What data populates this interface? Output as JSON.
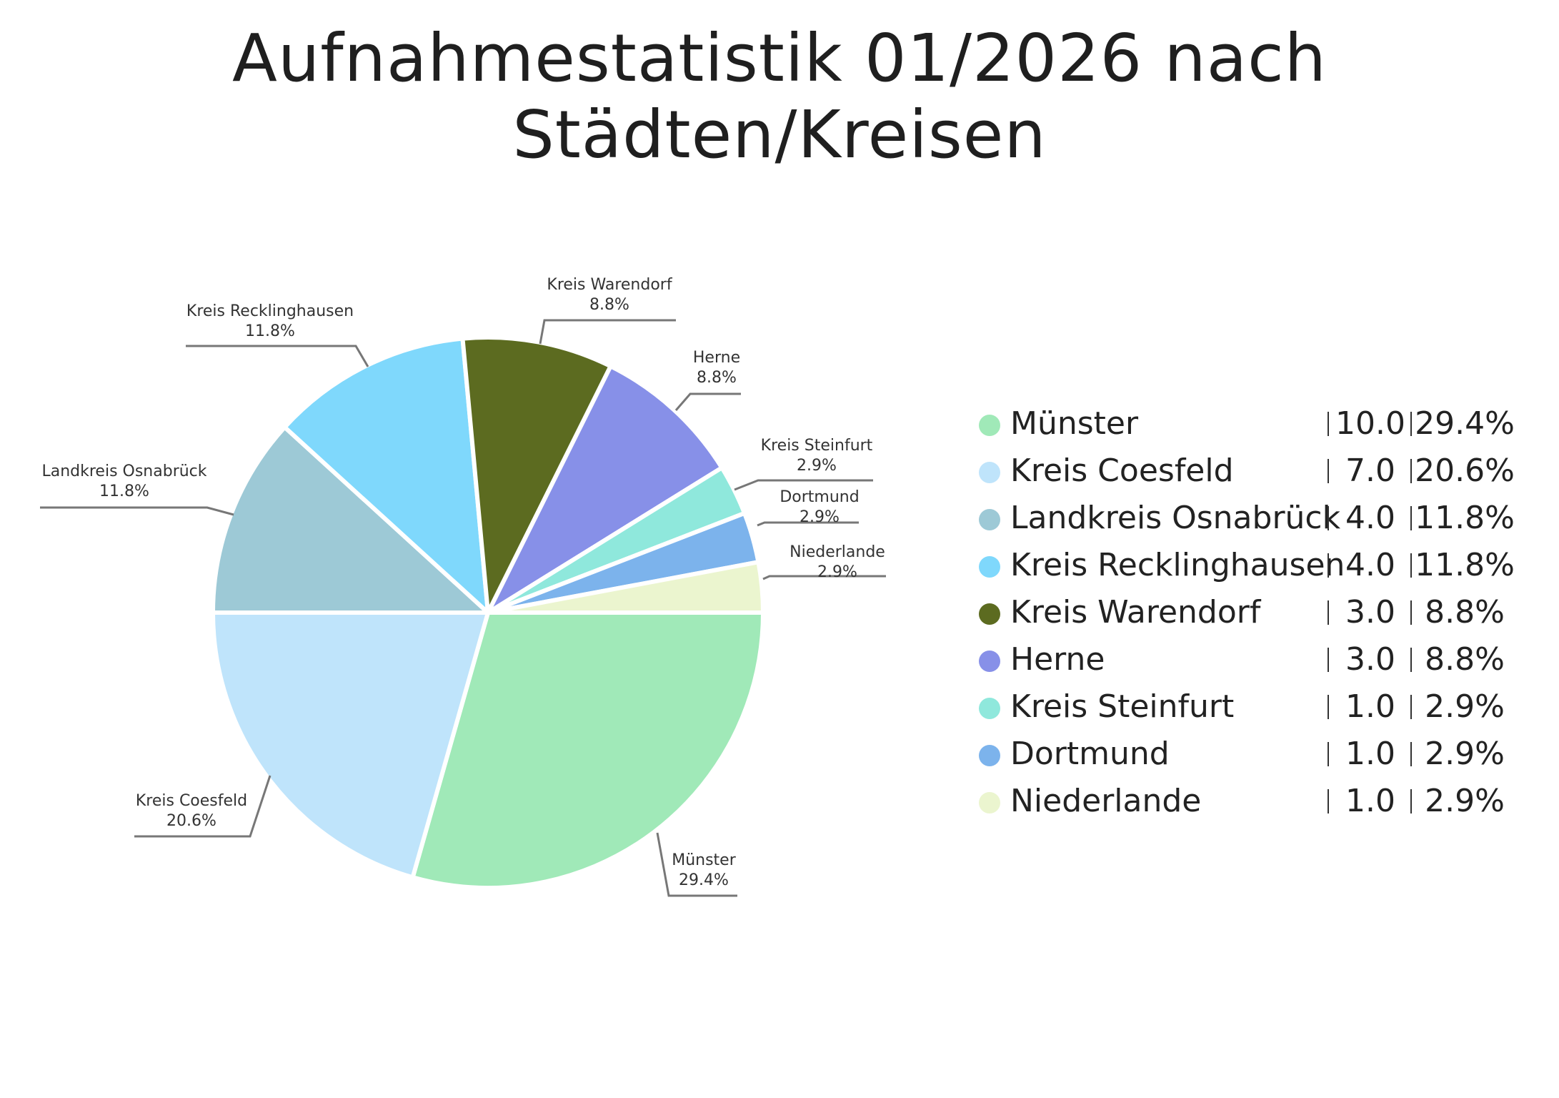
{
  "chart_data": {
    "type": "pie",
    "title": "Aufnahmestatistik 01/2026 nach Städten/Kreisen",
    "legend_position": "right",
    "slices": [
      {
        "name": "Münster",
        "value": 10.0,
        "value_label": "10.0",
        "percent_label": "29.4%",
        "color": "#a0e9b8"
      },
      {
        "name": "Kreis Coesfeld",
        "value": 7.0,
        "value_label": "7.0",
        "percent_label": "20.6%",
        "color": "#bfe4fb"
      },
      {
        "name": "Landkreis Osnabrück",
        "value": 4.0,
        "value_label": "4.0",
        "percent_label": "11.8%",
        "color": "#9dc9d6"
      },
      {
        "name": "Kreis Recklinghausen",
        "value": 4.0,
        "value_label": "4.0",
        "percent_label": "11.8%",
        "color": "#7fd8fc"
      },
      {
        "name": "Kreis Warendorf",
        "value": 3.0,
        "value_label": "3.0",
        "percent_label": "8.8%",
        "color": "#5c6b20"
      },
      {
        "name": "Herne",
        "value": 3.0,
        "value_label": "3.0",
        "percent_label": "8.8%",
        "color": "#8790e8"
      },
      {
        "name": "Kreis Steinfurt",
        "value": 1.0,
        "value_label": "1.0",
        "percent_label": "2.9%",
        "color": "#8fe8dc"
      },
      {
        "name": "Dortmund",
        "value": 1.0,
        "value_label": "1.0",
        "percent_label": "2.9%",
        "color": "#7cb3ec"
      },
      {
        "name": "Niederlande",
        "value": 1.0,
        "value_label": "1.0",
        "percent_label": "2.9%",
        "color": "#ebf5cf"
      }
    ]
  }
}
